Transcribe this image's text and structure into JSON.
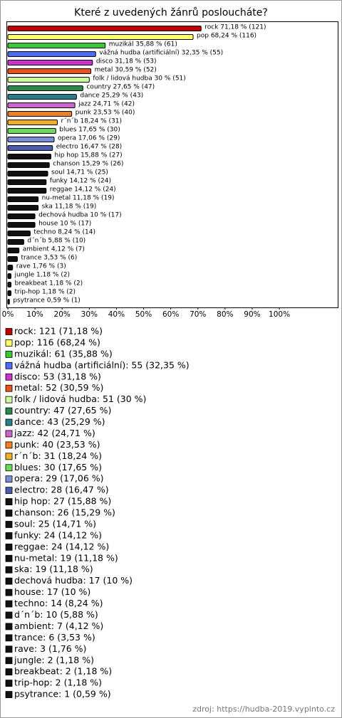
{
  "chart_data": {
    "type": "bar",
    "orientation": "horizontal",
    "title": "Které z uvedených žánrů posloucháte?",
    "values": [
      71.18,
      68.24,
      35.88,
      32.35,
      31.18,
      30.59,
      30,
      27.65,
      25.29,
      24.71,
      23.53,
      18.24,
      17.65,
      17.06,
      16.47,
      15.88,
      15.29,
      14.71,
      14.12,
      14.12,
      11.18,
      11.18,
      10,
      10,
      8.24,
      5.88,
      4.12,
      3.53,
      1.76,
      1.18,
      1.18,
      1.18,
      0.59
    ],
    "value_labels": [
      "rock 71,18 % (121)",
      "pop 68,24 % (116)",
      "muzikál 35,88 % (61)",
      "vážná hudba (artificiální) 32,35 % (55)",
      "disco 31,18 % (53)",
      "metal 30,59 % (52)",
      "folk / lidová hudba 30 % (51)",
      "country 27,65 % (47)",
      "dance 25,29 % (43)",
      "jazz 24,71 % (42)",
      "punk 23,53 % (40)",
      "r´n´b 18,24 % (31)",
      "blues 17,65 % (30)",
      "opera 17,06 % (29)",
      "electro 16,47 % (28)",
      "hip hop 15,88 % (27)",
      "chanson 15,29 % (26)",
      "soul 14,71 % (25)",
      "funky 14,12 % (24)",
      "reggae 14,12 % (24)",
      "nu-metal 11,18 % (19)",
      "ska 11,18 % (19)",
      "dechová hudba 10 % (17)",
      "house 10 % (17)",
      "techno 8,24 % (14)",
      "d´n´b 5,88 % (10)",
      "ambient 4,12 % (7)",
      "trance 3,53 % (6)",
      "rave 1,76 % (3)",
      "jungle 1,18 % (2)",
      "breakbeat 1,18 % (2)",
      "trip-hop 1,18 % (2)",
      "psytrance 0,59 % (1)"
    ],
    "legend": [
      "rock: 121 (71,18 %)",
      "pop: 116 (68,24 %)",
      "muzikál: 61 (35,88 %)",
      "vážná hudba (artificiální): 55 (32,35 %)",
      "disco: 53 (31,18 %)",
      "metal: 52 (30,59 %)",
      "folk / lidová hudba: 51 (30 %)",
      "country: 47 (27,65 %)",
      "dance: 43 (25,29 %)",
      "jazz: 42 (24,71 %)",
      "punk: 40 (23,53 %)",
      "r´n´b: 31 (18,24 %)",
      "blues: 30 (17,65 %)",
      "opera: 29 (17,06 %)",
      "electro: 28 (16,47 %)",
      "hip hop: 27 (15,88 %)",
      "chanson: 26 (15,29 %)",
      "soul: 25 (14,71 %)",
      "funky: 24 (14,12 %)",
      "reggae: 24 (14,12 %)",
      "nu-metal: 19 (11,18 %)",
      "ska: 19 (11,18 %)",
      "dechová hudba: 17 (10 %)",
      "house: 17 (10 %)",
      "techno: 14 (8,24 %)",
      "d´n´b: 10 (5,88 %)",
      "ambient: 7 (4,12 %)",
      "trance: 6 (3,53 %)",
      "rave: 3 (1,76 %)",
      "jungle: 2 (1,18 %)",
      "breakbeat: 2 (1,18 %)",
      "trip-hop: 2 (1,18 %)",
      "psytrance: 1 (0,59 %)"
    ],
    "colors": [
      "#c00000",
      "#ffff66",
      "#33cc33",
      "#4a6cf7",
      "#cc33cc",
      "#e8531a",
      "#ccff99",
      "#2a8a4a",
      "#2a7f8f",
      "#cc66cc",
      "#f08020",
      "#f0b020",
      "#66dd55",
      "#7a8ed8",
      "#4a5cb0",
      "#111111",
      "#111111",
      "#111111",
      "#111111",
      "#111111",
      "#111111",
      "#111111",
      "#111111",
      "#111111",
      "#111111",
      "#111111",
      "#111111",
      "#111111",
      "#111111",
      "#111111",
      "#111111",
      "#111111",
      "#111111"
    ],
    "xlim": [
      0,
      121.5
    ],
    "xticks": [
      {
        "value": 0,
        "label": "0%"
      },
      {
        "value": 10,
        "label": "10%"
      },
      {
        "value": 20,
        "label": "20%"
      },
      {
        "value": 30,
        "label": "30%"
      },
      {
        "value": 40,
        "label": "40%"
      },
      {
        "value": 50,
        "label": "50%"
      },
      {
        "value": 60,
        "label": "60%"
      },
      {
        "value": 70,
        "label": "70%"
      },
      {
        "value": 80,
        "label": "80%"
      },
      {
        "value": 90,
        "label": "90%"
      },
      {
        "value": 100,
        "label": "100%"
      }
    ],
    "grid": false,
    "source": "zdroj: https://hudba-2019.vyplnto.cz"
  }
}
